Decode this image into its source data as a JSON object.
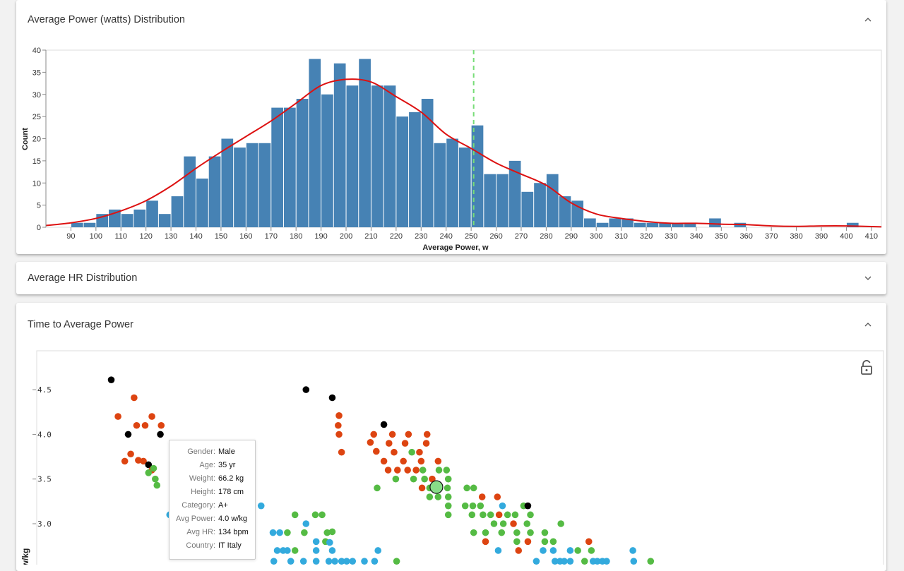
{
  "panels": {
    "power": {
      "title": "Average Power (watts) Distribution",
      "chevron": "chevron-up-icon"
    },
    "hr": {
      "title": "Average HR Distribution",
      "chevron": "chevron-down-icon"
    },
    "time": {
      "title": "Time to Average Power",
      "chevron": "chevron-up-icon"
    }
  },
  "chart_data": [
    {
      "type": "bar",
      "title": "",
      "xlabel": "Average Power, w",
      "ylabel": "Count",
      "xlim": [
        80,
        414
      ],
      "ylim": [
        0,
        40
      ],
      "bin_width": 5,
      "bin_start": 90,
      "values": [
        1,
        1,
        3,
        4,
        3,
        4,
        6,
        3,
        7,
        16,
        11,
        16,
        20,
        18,
        19,
        19,
        27,
        27,
        29,
        38,
        30,
        37,
        32,
        38,
        32,
        32,
        25,
        26,
        29,
        19,
        20,
        18,
        23,
        12,
        12,
        15,
        8,
        10,
        12,
        7,
        6,
        2,
        1,
        2,
        2,
        1,
        1,
        1,
        1,
        1,
        0,
        2,
        0,
        1,
        0,
        0,
        0,
        0,
        0,
        0,
        0,
        0,
        1,
        0
      ],
      "xticks": [
        90,
        100,
        110,
        120,
        130,
        140,
        150,
        160,
        170,
        180,
        190,
        200,
        210,
        220,
        230,
        240,
        250,
        260,
        270,
        280,
        290,
        300,
        310,
        320,
        330,
        340,
        350,
        360,
        370,
        380,
        390,
        400,
        410
      ],
      "yticks": [
        0,
        5,
        10,
        15,
        20,
        25,
        30,
        35,
        40
      ],
      "reference_line_x": 251,
      "bar_color": "#4682b4",
      "curve_color": "#dd1111",
      "reference_color": "#77dd77",
      "density_curve": [
        [
          80,
          0.4
        ],
        [
          90,
          1.0
        ],
        [
          100,
          2.0
        ],
        [
          110,
          3.7
        ],
        [
          120,
          6.0
        ],
        [
          130,
          9.3
        ],
        [
          140,
          13.3
        ],
        [
          150,
          17.0
        ],
        [
          160,
          20.5
        ],
        [
          170,
          24.0
        ],
        [
          180,
          28.0
        ],
        [
          190,
          32.0
        ],
        [
          200,
          33.4
        ],
        [
          210,
          32.8
        ],
        [
          220,
          29.5
        ],
        [
          230,
          26.0
        ],
        [
          240,
          21.0
        ],
        [
          250,
          17.8
        ],
        [
          260,
          14.5
        ],
        [
          270,
          12.0
        ],
        [
          280,
          9.5
        ],
        [
          290,
          5.5
        ],
        [
          300,
          3.0
        ],
        [
          310,
          2.0
        ],
        [
          320,
          1.3
        ],
        [
          330,
          0.9
        ],
        [
          340,
          0.9
        ],
        [
          350,
          0.7
        ],
        [
          360,
          0.6
        ],
        [
          370,
          0.3
        ],
        [
          380,
          0.2
        ],
        [
          390,
          0.3
        ],
        [
          400,
          0.3
        ],
        [
          414,
          0.1
        ]
      ]
    },
    {
      "type": "scatter",
      "ylabel": "w/kg",
      "yticks": [
        3.0,
        3.5,
        4.0,
        4.5
      ],
      "ylim": [
        2.6,
        4.9
      ],
      "xlim": [
        0,
        1
      ],
      "category_colors": {
        "black": "#000000",
        "red": "#dd4411",
        "green": "#55bb44",
        "blue": "#33aadd"
      },
      "points": [
        {
          "x": 0.088,
          "y": 4.61,
          "c": "black"
        },
        {
          "x": 0.108,
          "y": 4.0,
          "c": "black"
        },
        {
          "x": 0.146,
          "y": 4.0,
          "c": "black"
        },
        {
          "x": 0.104,
          "y": 3.7,
          "c": "red"
        },
        {
          "x": 0.111,
          "y": 3.78,
          "c": "red"
        },
        {
          "x": 0.12,
          "y": 3.71,
          "c": "red"
        },
        {
          "x": 0.126,
          "y": 3.7,
          "c": "red"
        },
        {
          "x": 0.132,
          "y": 3.66,
          "c": "black"
        },
        {
          "x": 0.136,
          "y": 3.6,
          "c": "red"
        },
        {
          "x": 0.132,
          "y": 3.57,
          "c": "green"
        },
        {
          "x": 0.138,
          "y": 3.62,
          "c": "green"
        },
        {
          "x": 0.14,
          "y": 3.5,
          "c": "green"
        },
        {
          "x": 0.142,
          "y": 3.43,
          "c": "green"
        },
        {
          "x": 0.096,
          "y": 4.2,
          "c": "red"
        },
        {
          "x": 0.115,
          "y": 4.41,
          "c": "red"
        },
        {
          "x": 0.118,
          "y": 4.1,
          "c": "red"
        },
        {
          "x": 0.128,
          "y": 4.1,
          "c": "red"
        },
        {
          "x": 0.136,
          "y": 4.2,
          "c": "red"
        },
        {
          "x": 0.147,
          "y": 4.1,
          "c": "red"
        },
        {
          "x": 0.318,
          "y": 4.5,
          "c": "black"
        },
        {
          "x": 0.349,
          "y": 4.41,
          "c": "black"
        },
        {
          "x": 0.357,
          "y": 4.21,
          "c": "red"
        },
        {
          "x": 0.356,
          "y": 4.1,
          "c": "red"
        },
        {
          "x": 0.357,
          "y": 4.0,
          "c": "red"
        },
        {
          "x": 0.36,
          "y": 3.8,
          "c": "red"
        },
        {
          "x": 0.41,
          "y": 4.11,
          "c": "black"
        },
        {
          "x": 0.398,
          "y": 4.0,
          "c": "red"
        },
        {
          "x": 0.42,
          "y": 4.0,
          "c": "red"
        },
        {
          "x": 0.439,
          "y": 4.0,
          "c": "red"
        },
        {
          "x": 0.461,
          "y": 4.0,
          "c": "red"
        },
        {
          "x": 0.394,
          "y": 3.91,
          "c": "red"
        },
        {
          "x": 0.416,
          "y": 3.9,
          "c": "red"
        },
        {
          "x": 0.435,
          "y": 3.9,
          "c": "red"
        },
        {
          "x": 0.46,
          "y": 3.9,
          "c": "red"
        },
        {
          "x": 0.401,
          "y": 3.81,
          "c": "red"
        },
        {
          "x": 0.422,
          "y": 3.8,
          "c": "red"
        },
        {
          "x": 0.443,
          "y": 3.8,
          "c": "green"
        },
        {
          "x": 0.452,
          "y": 3.8,
          "c": "red"
        },
        {
          "x": 0.41,
          "y": 3.7,
          "c": "red"
        },
        {
          "x": 0.433,
          "y": 3.7,
          "c": "red"
        },
        {
          "x": 0.454,
          "y": 3.7,
          "c": "red"
        },
        {
          "x": 0.474,
          "y": 3.7,
          "c": "red"
        },
        {
          "x": 0.415,
          "y": 3.6,
          "c": "red"
        },
        {
          "x": 0.426,
          "y": 3.6,
          "c": "red"
        },
        {
          "x": 0.438,
          "y": 3.6,
          "c": "red"
        },
        {
          "x": 0.448,
          "y": 3.6,
          "c": "red"
        },
        {
          "x": 0.456,
          "y": 3.6,
          "c": "green"
        },
        {
          "x": 0.475,
          "y": 3.6,
          "c": "green"
        },
        {
          "x": 0.484,
          "y": 3.6,
          "c": "green"
        },
        {
          "x": 0.424,
          "y": 3.5,
          "c": "green"
        },
        {
          "x": 0.445,
          "y": 3.5,
          "c": "green"
        },
        {
          "x": 0.458,
          "y": 3.5,
          "c": "green"
        },
        {
          "x": 0.467,
          "y": 3.5,
          "c": "red"
        },
        {
          "x": 0.486,
          "y": 3.5,
          "c": "green"
        },
        {
          "x": 0.402,
          "y": 3.4,
          "c": "green"
        },
        {
          "x": 0.455,
          "y": 3.4,
          "c": "red"
        },
        {
          "x": 0.464,
          "y": 3.4,
          "c": "green"
        },
        {
          "x": 0.472,
          "y": 3.41,
          "c": "green",
          "highlight": true
        },
        {
          "x": 0.485,
          "y": 3.4,
          "c": "green"
        },
        {
          "x": 0.508,
          "y": 3.4,
          "c": "green"
        },
        {
          "x": 0.516,
          "y": 3.4,
          "c": "green"
        },
        {
          "x": 0.464,
          "y": 3.3,
          "c": "green"
        },
        {
          "x": 0.474,
          "y": 3.3,
          "c": "green"
        },
        {
          "x": 0.486,
          "y": 3.3,
          "c": "green"
        },
        {
          "x": 0.526,
          "y": 3.3,
          "c": "red"
        },
        {
          "x": 0.544,
          "y": 3.3,
          "c": "red"
        },
        {
          "x": 0.486,
          "y": 3.2,
          "c": "green"
        },
        {
          "x": 0.506,
          "y": 3.2,
          "c": "green"
        },
        {
          "x": 0.515,
          "y": 3.2,
          "c": "green"
        },
        {
          "x": 0.524,
          "y": 3.2,
          "c": "green"
        },
        {
          "x": 0.55,
          "y": 3.2,
          "c": "blue"
        },
        {
          "x": 0.575,
          "y": 3.2,
          "c": "green"
        },
        {
          "x": 0.58,
          "y": 3.2,
          "c": "black"
        },
        {
          "x": 0.486,
          "y": 3.1,
          "c": "green"
        },
        {
          "x": 0.514,
          "y": 3.1,
          "c": "green"
        },
        {
          "x": 0.527,
          "y": 3.1,
          "c": "green"
        },
        {
          "x": 0.536,
          "y": 3.1,
          "c": "green"
        },
        {
          "x": 0.546,
          "y": 3.1,
          "c": "red"
        },
        {
          "x": 0.556,
          "y": 3.1,
          "c": "green"
        },
        {
          "x": 0.565,
          "y": 3.1,
          "c": "green"
        },
        {
          "x": 0.583,
          "y": 3.1,
          "c": "green"
        },
        {
          "x": 0.54,
          "y": 3.0,
          "c": "green"
        },
        {
          "x": 0.551,
          "y": 3.0,
          "c": "green"
        },
        {
          "x": 0.563,
          "y": 3.0,
          "c": "red"
        },
        {
          "x": 0.579,
          "y": 3.0,
          "c": "green"
        },
        {
          "x": 0.619,
          "y": 3.0,
          "c": "green"
        },
        {
          "x": 0.516,
          "y": 2.9,
          "c": "green"
        },
        {
          "x": 0.53,
          "y": 2.9,
          "c": "green"
        },
        {
          "x": 0.549,
          "y": 2.9,
          "c": "green"
        },
        {
          "x": 0.567,
          "y": 2.9,
          "c": "green"
        },
        {
          "x": 0.583,
          "y": 2.9,
          "c": "green"
        },
        {
          "x": 0.6,
          "y": 2.9,
          "c": "green"
        },
        {
          "x": 0.53,
          "y": 2.8,
          "c": "red"
        },
        {
          "x": 0.567,
          "y": 2.8,
          "c": "green"
        },
        {
          "x": 0.58,
          "y": 2.8,
          "c": "red"
        },
        {
          "x": 0.6,
          "y": 2.8,
          "c": "green"
        },
        {
          "x": 0.61,
          "y": 2.8,
          "c": "green"
        },
        {
          "x": 0.652,
          "y": 2.8,
          "c": "red"
        },
        {
          "x": 0.545,
          "y": 2.7,
          "c": "blue"
        },
        {
          "x": 0.569,
          "y": 2.7,
          "c": "red"
        },
        {
          "x": 0.598,
          "y": 2.7,
          "c": "blue"
        },
        {
          "x": 0.61,
          "y": 2.7,
          "c": "blue"
        },
        {
          "x": 0.63,
          "y": 2.7,
          "c": "blue"
        },
        {
          "x": 0.639,
          "y": 2.7,
          "c": "green"
        },
        {
          "x": 0.655,
          "y": 2.7,
          "c": "green"
        },
        {
          "x": 0.704,
          "y": 2.7,
          "c": "blue"
        },
        {
          "x": 0.157,
          "y": 3.1,
          "c": "blue"
        },
        {
          "x": 0.163,
          "y": 3.2,
          "c": "blue"
        },
        {
          "x": 0.265,
          "y": 3.2,
          "c": "blue"
        },
        {
          "x": 0.305,
          "y": 3.1,
          "c": "green"
        },
        {
          "x": 0.329,
          "y": 3.1,
          "c": "green"
        },
        {
          "x": 0.337,
          "y": 3.1,
          "c": "green"
        },
        {
          "x": 0.318,
          "y": 3.0,
          "c": "blue"
        },
        {
          "x": 0.279,
          "y": 2.9,
          "c": "blue"
        },
        {
          "x": 0.287,
          "y": 2.9,
          "c": "blue"
        },
        {
          "x": 0.296,
          "y": 2.9,
          "c": "green"
        },
        {
          "x": 0.316,
          "y": 2.9,
          "c": "green"
        },
        {
          "x": 0.343,
          "y": 2.9,
          "c": "green"
        },
        {
          "x": 0.349,
          "y": 2.91,
          "c": "green"
        },
        {
          "x": 0.33,
          "y": 2.8,
          "c": "blue"
        },
        {
          "x": 0.341,
          "y": 2.8,
          "c": "green"
        },
        {
          "x": 0.346,
          "y": 2.79,
          "c": "blue"
        },
        {
          "x": 0.284,
          "y": 2.7,
          "c": "blue"
        },
        {
          "x": 0.291,
          "y": 2.7,
          "c": "blue"
        },
        {
          "x": 0.296,
          "y": 2.7,
          "c": "blue"
        },
        {
          "x": 0.305,
          "y": 2.7,
          "c": "green"
        },
        {
          "x": 0.33,
          "y": 2.7,
          "c": "blue"
        },
        {
          "x": 0.349,
          "y": 2.7,
          "c": "blue"
        },
        {
          "x": 0.403,
          "y": 2.7,
          "c": "blue"
        },
        {
          "x": 0.28,
          "y": 2.58,
          "c": "blue"
        },
        {
          "x": 0.3,
          "y": 2.58,
          "c": "blue"
        },
        {
          "x": 0.315,
          "y": 2.58,
          "c": "blue"
        },
        {
          "x": 0.33,
          "y": 2.58,
          "c": "blue"
        },
        {
          "x": 0.345,
          "y": 2.58,
          "c": "blue"
        },
        {
          "x": 0.352,
          "y": 2.58,
          "c": "blue"
        },
        {
          "x": 0.36,
          "y": 2.58,
          "c": "blue"
        },
        {
          "x": 0.366,
          "y": 2.58,
          "c": "blue"
        },
        {
          "x": 0.373,
          "y": 2.58,
          "c": "blue"
        },
        {
          "x": 0.387,
          "y": 2.58,
          "c": "blue"
        },
        {
          "x": 0.399,
          "y": 2.58,
          "c": "blue"
        },
        {
          "x": 0.425,
          "y": 2.58,
          "c": "green"
        },
        {
          "x": 0.59,
          "y": 2.58,
          "c": "blue"
        },
        {
          "x": 0.612,
          "y": 2.58,
          "c": "blue"
        },
        {
          "x": 0.618,
          "y": 2.58,
          "c": "blue"
        },
        {
          "x": 0.623,
          "y": 2.58,
          "c": "blue"
        },
        {
          "x": 0.63,
          "y": 2.58,
          "c": "blue"
        },
        {
          "x": 0.647,
          "y": 2.58,
          "c": "green"
        },
        {
          "x": 0.657,
          "y": 2.58,
          "c": "blue"
        },
        {
          "x": 0.662,
          "y": 2.58,
          "c": "blue"
        },
        {
          "x": 0.668,
          "y": 2.58,
          "c": "blue"
        },
        {
          "x": 0.673,
          "y": 2.58,
          "c": "blue"
        },
        {
          "x": 0.705,
          "y": 2.58,
          "c": "blue"
        },
        {
          "x": 0.725,
          "y": 2.58,
          "c": "green"
        }
      ]
    }
  ],
  "tooltip": {
    "rows": [
      {
        "label": "Gender:",
        "value": "Male"
      },
      {
        "label": "Age:",
        "value": "35 yr"
      },
      {
        "label": "Weight:",
        "value": "66.2 kg"
      },
      {
        "label": "Height:",
        "value": "178 cm"
      },
      {
        "label": "Category:",
        "value": "A+"
      },
      {
        "label": "Avg Power:",
        "value": "4.0 w/kg"
      },
      {
        "label": "Avg HR:",
        "value": "134 bpm"
      },
      {
        "label": "Country:",
        "value": "IT Italy"
      }
    ]
  },
  "lock_icon": "unlock-icon"
}
